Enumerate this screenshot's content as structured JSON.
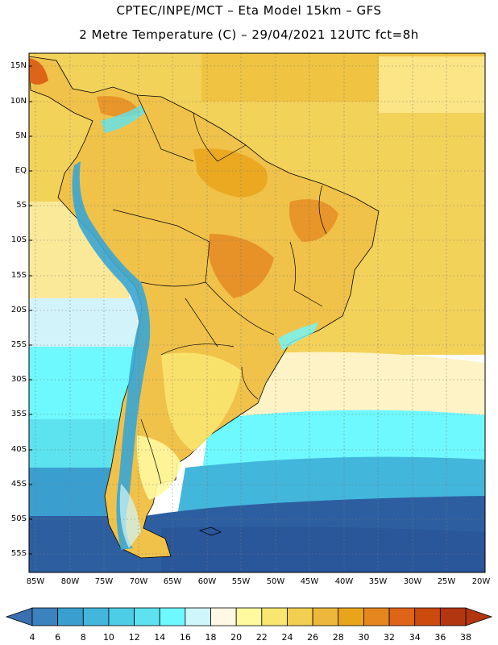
{
  "header": {
    "line1": "CPTEC/INPE/MCT –  Eta Model 15km – GFS",
    "line2": "2 Metre Temperature (C) – 29/04/2021 12UTC fct=8h"
  },
  "map": {
    "lat_labels": [
      "15N",
      "10N",
      "5N",
      "EQ",
      "5S",
      "10S",
      "15S",
      "20S",
      "25S",
      "30S",
      "35S",
      "40S",
      "45S",
      "50S",
      "55S"
    ],
    "lon_labels": [
      "85W",
      "80W",
      "75W",
      "70W",
      "65W",
      "60W",
      "55W",
      "50W",
      "45W",
      "40W",
      "35W",
      "30W",
      "25W",
      "20W"
    ]
  },
  "legend": {
    "levels": [
      "4",
      "6",
      "8",
      "10",
      "12",
      "14",
      "16",
      "18",
      "20",
      "22",
      "24",
      "26",
      "28",
      "30",
      "32",
      "34",
      "36",
      "38"
    ],
    "colors": [
      "#2d5fa0",
      "#3b82bf",
      "#3a9fcf",
      "#43b6dc",
      "#4ecde6",
      "#5ce3ef",
      "#6ef8ff",
      "#cff6fb",
      "#fff8e4",
      "#fff9a0",
      "#f8e670",
      "#f2cf50",
      "#ecb73a",
      "#e9a51a",
      "#e5861f",
      "#de6517",
      "#cc4a0c",
      "#b23610"
    ]
  },
  "colors": {
    "ocean_warm": "#f3d25a",
    "ocean_warmer": "#efbf3c",
    "ocean_mild": "#fbe99a",
    "ocean_cool": "#d3f3fa",
    "ocean_cold": "#5ce2ef",
    "ocean_colder": "#43b6dc",
    "ocean_coldest": "#2d5fa0",
    "land_base": "#f0c24a",
    "land_hot": "#e08c26",
    "andes": "#3aa6d4"
  }
}
